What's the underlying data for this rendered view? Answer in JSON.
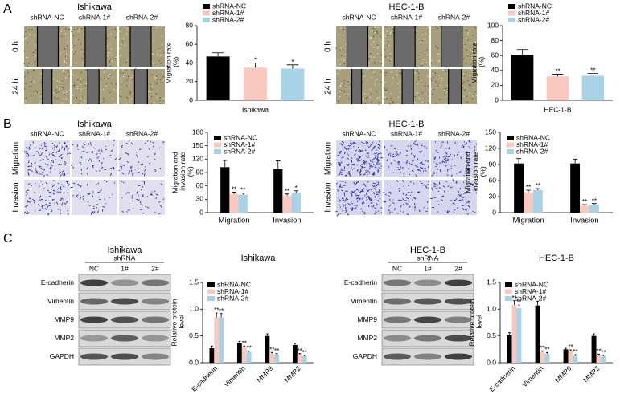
{
  "panel_labels": [
    "A",
    "B",
    "C"
  ],
  "micrographs": [
    {
      "title": "Ishikawa",
      "columns": [
        "shRNA-NC",
        "shRNA-1#",
        "shRNA-2#"
      ],
      "rows": [
        "0 h",
        "24 h"
      ],
      "kind": "scratch"
    },
    {
      "title": "HEC-1-B",
      "columns": [
        "shRNA-NC",
        "shRNA-1#",
        "shRNA-2#"
      ],
      "rows": [
        "0 h",
        "24 h"
      ],
      "kind": "scratch"
    },
    {
      "title": "Ishikawa",
      "columns": [
        "shRNA-NC",
        "shRNA-1#",
        "shRNA-2#"
      ],
      "rows": [
        "Migration",
        "Invasion"
      ],
      "kind": "transwell"
    },
    {
      "title": "HEC-1-B",
      "columns": [
        "shRNA-NC",
        "shRNA-1#",
        "shRNA-2#"
      ],
      "rows": [
        "Migration",
        "Invasion"
      ],
      "kind": "transwell"
    }
  ],
  "blots": [
    {
      "title": "Ishikawa",
      "group": "shRNA",
      "lanes": [
        "NC",
        "1#",
        "2#"
      ],
      "rows": [
        "E-cadherin",
        "Vimentin",
        "MMP9",
        "MMP2",
        "GAPDH"
      ]
    },
    {
      "title": "HEC-1-B",
      "group": "shRNA",
      "lanes": [
        "NC",
        "1#",
        "2#"
      ],
      "rows": [
        "E-cadherin",
        "Vimentin",
        "MMP9",
        "MMP2",
        "GAPDH"
      ]
    }
  ],
  "chart_data": [
    {
      "type": "bar",
      "y_label": "Migration rate (%)",
      "x_label": "Ishikawa",
      "categories": [
        null
      ],
      "ylim": [
        0,
        80
      ],
      "yticks": [
        0,
        20,
        40,
        60,
        80
      ],
      "series": [
        {
          "name": "shRNA-NC",
          "color": "#000000",
          "values": [
            47
          ],
          "errors": [
            4
          ],
          "significance": [
            null
          ]
        },
        {
          "name": "shRNA-1#",
          "color": "#f9c8bf",
          "values": [
            35
          ],
          "errors": [
            5
          ],
          "significance": [
            "*"
          ]
        },
        {
          "name": "shRNA-2#",
          "color": "#a8d2e6",
          "values": [
            34
          ],
          "errors": [
            4
          ],
          "significance": [
            "*"
          ]
        }
      ]
    },
    {
      "type": "bar",
      "y_label": "Migration rate (%)",
      "x_label": "HEC-1-B",
      "categories": [
        null
      ],
      "ylim": [
        0,
        100
      ],
      "yticks": [
        0,
        20,
        40,
        60,
        80,
        100
      ],
      "series": [
        {
          "name": "shRNA-NC",
          "color": "#000000",
          "values": [
            61
          ],
          "errors": [
            7
          ],
          "significance": [
            null
          ]
        },
        {
          "name": "shRNA-1#",
          "color": "#f9c8bf",
          "values": [
            32
          ],
          "errors": [
            3
          ],
          "significance": [
            "**"
          ]
        },
        {
          "name": "shRNA-2#",
          "color": "#a8d2e6",
          "values": [
            33
          ],
          "errors": [
            3
          ],
          "significance": [
            "**"
          ]
        }
      ]
    },
    {
      "type": "bar",
      "y_label": "Migration and invasion rate (%)",
      "categories": [
        "Migration",
        "Invasion"
      ],
      "ylim": [
        0,
        180
      ],
      "yticks": [
        0,
        30,
        60,
        90,
        120,
        150,
        180
      ],
      "series": [
        {
          "name": "shRNA-NC",
          "color": "#000000",
          "values": [
            102,
            98
          ],
          "errors": [
            15,
            18
          ],
          "significance": [
            null,
            null
          ]
        },
        {
          "name": "shRNA-1#",
          "color": "#f9c8bf",
          "values": [
            42,
            38
          ],
          "errors": [
            4,
            4
          ],
          "significance": [
            "**",
            "**"
          ]
        },
        {
          "name": "shRNA-2#",
          "color": "#a8d2e6",
          "values": [
            40,
            45
          ],
          "errors": [
            4,
            4
          ],
          "significance": [
            "**",
            "*"
          ]
        }
      ]
    },
    {
      "type": "bar",
      "y_label": "Migration and invasion rate (%)",
      "categories": [
        "Migration",
        "Invasion"
      ],
      "ylim": [
        0,
        150
      ],
      "yticks": [
        0,
        30,
        60,
        90,
        120,
        150
      ],
      "series": [
        {
          "name": "shRNA-NC",
          "color": "#000000",
          "values": [
            92,
            92
          ],
          "errors": [
            9,
            8
          ],
          "significance": [
            null,
            null
          ]
        },
        {
          "name": "shRNA-1#",
          "color": "#f9c8bf",
          "values": [
            38,
            13
          ],
          "errors": [
            4,
            2
          ],
          "significance": [
            "**",
            "**"
          ]
        },
        {
          "name": "shRNA-2#",
          "color": "#a8d2e6",
          "values": [
            42,
            15
          ],
          "errors": [
            3,
            2
          ],
          "significance": [
            "**",
            "**"
          ]
        }
      ]
    },
    {
      "type": "bar",
      "title": "Ishikawa",
      "y_label": "Relative protein level",
      "categories": [
        "E-cadherin",
        "Vimentin",
        "MMP9",
        "MMP2"
      ],
      "ylim": [
        0,
        1.5
      ],
      "yticks": [
        {
          "value": 0,
          "label": "0.0"
        },
        {
          "value": 0.5,
          "label": "0.5"
        },
        {
          "value": 1,
          "label": "1.0"
        },
        {
          "value": 1.5,
          "label": "1.5"
        }
      ],
      "series": [
        {
          "name": "shRNA-NC",
          "color": "#000000",
          "values": [
            0.27,
            0.37,
            0.5,
            0.33
          ],
          "errors": [
            0.04,
            0.03,
            0.04,
            0.03
          ],
          "significance": [
            null,
            null,
            null,
            null
          ]
        },
        {
          "name": "shRNA-1#",
          "color": "#f9c8bf",
          "values": [
            0.85,
            0.28,
            0.17,
            0.15
          ],
          "errors": [
            0.08,
            0.03,
            0.02,
            0.02
          ],
          "significance": [
            "**",
            "**",
            "**",
            "**"
          ]
        },
        {
          "name": "shRNA-2#",
          "color": "#a8d2e6",
          "values": [
            0.85,
            0.2,
            0.15,
            0.12
          ],
          "errors": [
            0.07,
            0.02,
            0.02,
            0.02
          ],
          "significance": [
            "**",
            "**",
            "**",
            "**"
          ]
        }
      ]
    },
    {
      "type": "bar",
      "title": "HEC-1-B",
      "y_label": "Relative protein level",
      "categories": [
        "E-cadherin",
        "Vimentin",
        "MMP9",
        "MMP2"
      ],
      "ylim": [
        0,
        1.5
      ],
      "yticks": [
        {
          "value": 0,
          "label": "0.0"
        },
        {
          "value": 0.5,
          "label": "0.5"
        },
        {
          "value": 1,
          "label": "1.0"
        },
        {
          "value": 1.5,
          "label": "1.5"
        }
      ],
      "series": [
        {
          "name": "shRNA-NC",
          "color": "#000000",
          "values": [
            0.52,
            1.07,
            0.25,
            0.5
          ],
          "errors": [
            0.04,
            0.08,
            0.02,
            0.04
          ],
          "significance": [
            null,
            null,
            null,
            null
          ]
        },
        {
          "name": "shRNA-1#",
          "color": "#f9c8bf",
          "values": [
            1.08,
            0.2,
            0.22,
            0.14
          ],
          "errors": [
            0.08,
            0.02,
            0.02,
            0.02
          ],
          "significance": [
            "**",
            "**",
            "**",
            "**"
          ]
        },
        {
          "name": "shRNA-2#",
          "color": "#a8d2e6",
          "values": [
            1.02,
            0.17,
            0.13,
            0.12
          ],
          "errors": [
            0.06,
            0.02,
            0.02,
            0.02
          ],
          "significance": [
            "**",
            "**",
            "**",
            "**"
          ]
        }
      ]
    }
  ]
}
